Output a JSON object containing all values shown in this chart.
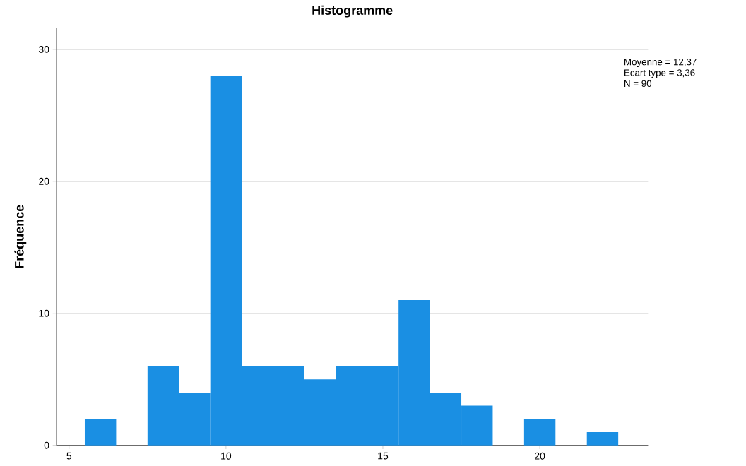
{
  "chart_data": {
    "type": "histogram",
    "title": "Histogramme",
    "ylabel": "Fréquence",
    "bins": [
      5.5,
      6.5,
      7.5,
      8.5,
      9.5,
      10.5,
      11.5,
      12.5,
      13.5,
      14.5,
      15.5,
      16.5,
      17.5,
      18.5,
      19.5,
      20.5,
      21.5,
      22.5
    ],
    "values": [
      2,
      0,
      6,
      4,
      28,
      6,
      6,
      5,
      6,
      6,
      11,
      4,
      3,
      0,
      2,
      0,
      1
    ],
    "color": "#1a8fe3",
    "xlim": [
      4.6,
      23.45
    ],
    "ylim": [
      0,
      31.6
    ],
    "xticks": [
      5,
      10,
      15,
      20
    ],
    "yticks": [
      0,
      10,
      20,
      30
    ],
    "grid": "y",
    "annotations": [
      "Moyenne = 12,37",
      "Ecart type = 3,36",
      "N = 90"
    ]
  }
}
